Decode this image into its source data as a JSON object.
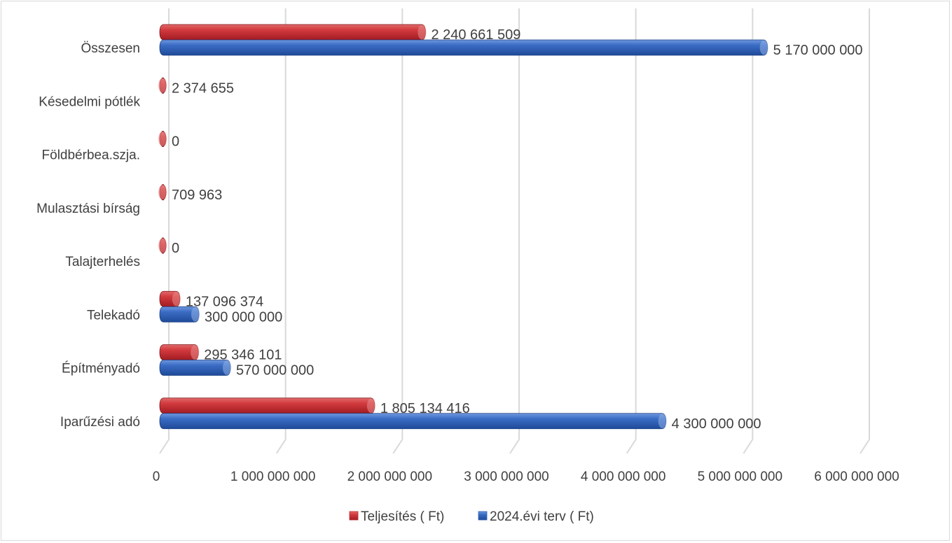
{
  "chart_data": {
    "type": "bar",
    "orientation": "horizontal",
    "style": "3d-cylinder-bar",
    "categories": [
      "Iparűzési adó",
      "Építményadó",
      "Telekadó",
      "Talajterhelés",
      "Mulasztási bírság",
      "Földbérbea.szja.",
      "Késedelmi pótlék",
      "Összesen"
    ],
    "series": [
      {
        "name": "Teljesítés ( Ft)",
        "color": "#c0272d",
        "values": [
          1805134416,
          295346101,
          137096374,
          0,
          709963,
          0,
          2374655,
          2240661509
        ],
        "labels": [
          "1 805 134 416",
          "295 346 101",
          "137 096 374",
          "0",
          "709 963",
          "0",
          "2 374 655",
          "2 240 661 509"
        ]
      },
      {
        "name": "2024.évi terv ( Ft)",
        "color": "#2e5fb8",
        "values": [
          4300000000,
          570000000,
          300000000,
          null,
          null,
          null,
          null,
          5170000000
        ],
        "labels": [
          "4 300 000 000",
          "570 000 000",
          "300 000 000",
          null,
          null,
          null,
          null,
          "5 170 000 000"
        ]
      }
    ],
    "x_ticks": [
      "0",
      "1 000 000 000",
      "2 000 000 000",
      "3 000 000 000",
      "4 000 000 000",
      "5 000 000 000",
      "6 000 000 000"
    ],
    "xlim": [
      0,
      6000000000
    ],
    "grid": true,
    "legend_position": "bottom"
  }
}
